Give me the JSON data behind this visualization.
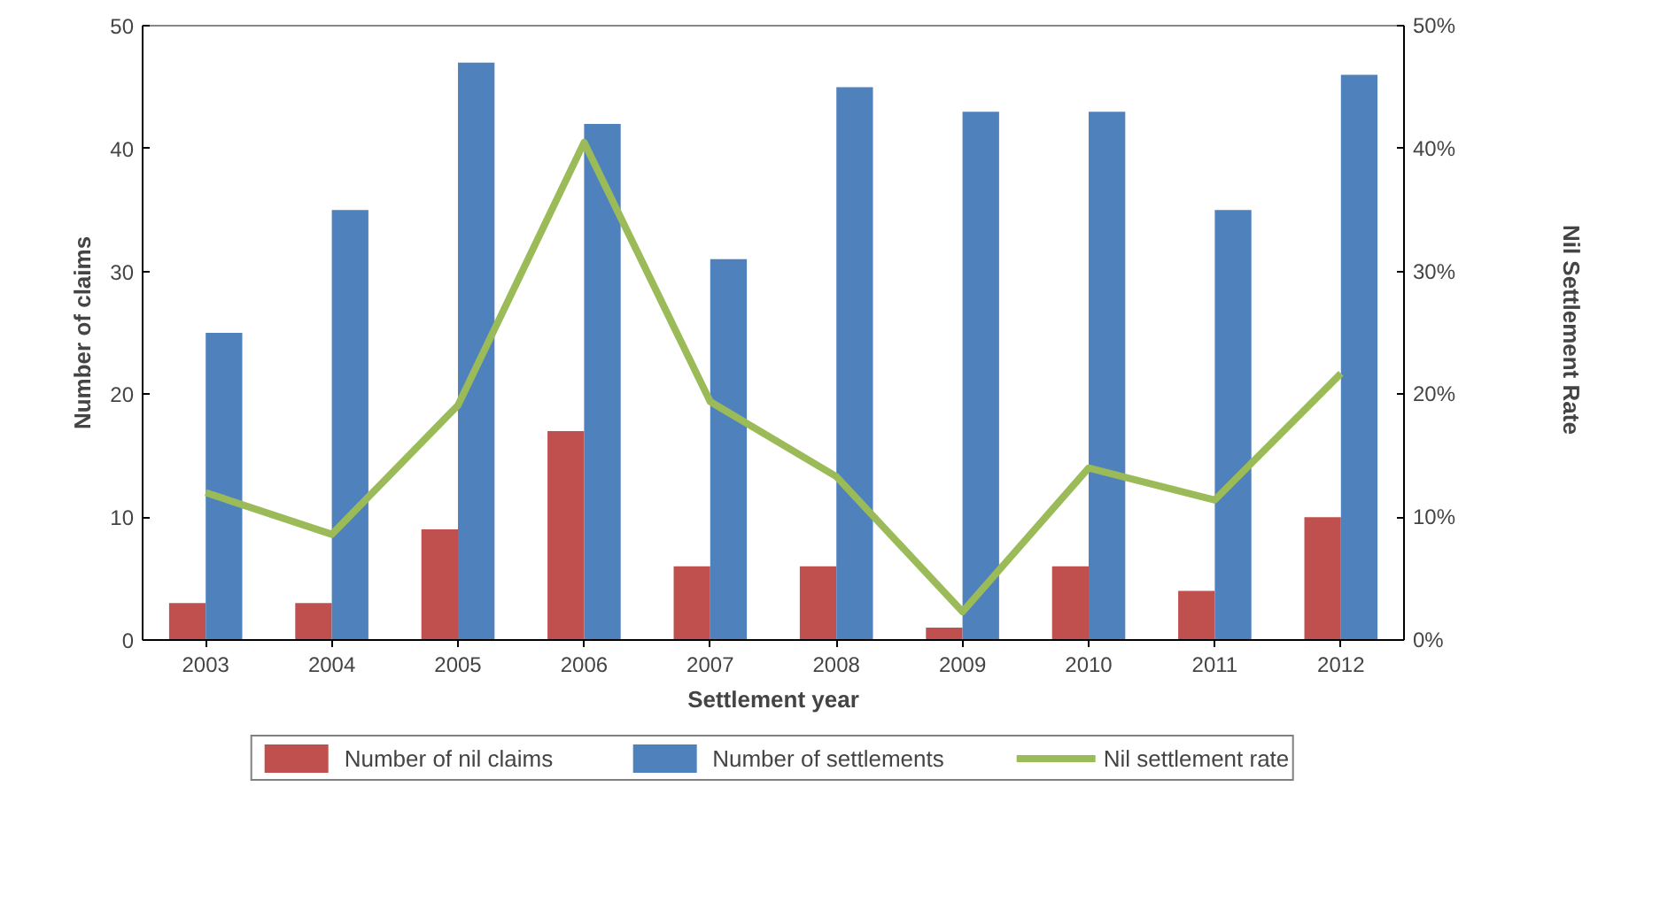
{
  "chart_data": {
    "type": "bar",
    "xlabel": "Settlement year",
    "ylabel": "Number of claims",
    "y2label": "Nil Settlement  Rate",
    "categories": [
      "2003",
      "2004",
      "2005",
      "2006",
      "2007",
      "2008",
      "2009",
      "2010",
      "2011",
      "2012"
    ],
    "series": [
      {
        "name": "Number of nil claims",
        "color": "#c0504d",
        "values": [
          3,
          3,
          9,
          17,
          6,
          6,
          1,
          6,
          4,
          10
        ]
      },
      {
        "name": "Number of settlements",
        "color": "#4f81bd",
        "values": [
          25,
          35,
          47,
          42,
          31,
          45,
          43,
          43,
          35,
          46
        ]
      },
      {
        "name": "Nil settlement rate",
        "color": "#9bbb59",
        "type": "line",
        "axis": "y2",
        "values": [
          12,
          8.6,
          19.1,
          40.5,
          19.4,
          13.3,
          2.3,
          14,
          11.4,
          21.7
        ]
      }
    ],
    "ylim": [
      0,
      50
    ],
    "yticks": [
      0,
      10,
      20,
      30,
      40,
      50
    ],
    "y2lim": [
      0,
      50
    ],
    "y2ticks": [
      {
        "value": 0,
        "label": "0%"
      },
      {
        "value": 10,
        "label": "10%"
      },
      {
        "value": 20,
        "label": "20%"
      },
      {
        "value": 30,
        "label": "30%"
      },
      {
        "value": 40,
        "label": "40%"
      },
      {
        "value": 50,
        "label": "50%"
      }
    ],
    "grid": false,
    "legend": "bottom",
    "marker": "none",
    "line_style": "solid"
  }
}
